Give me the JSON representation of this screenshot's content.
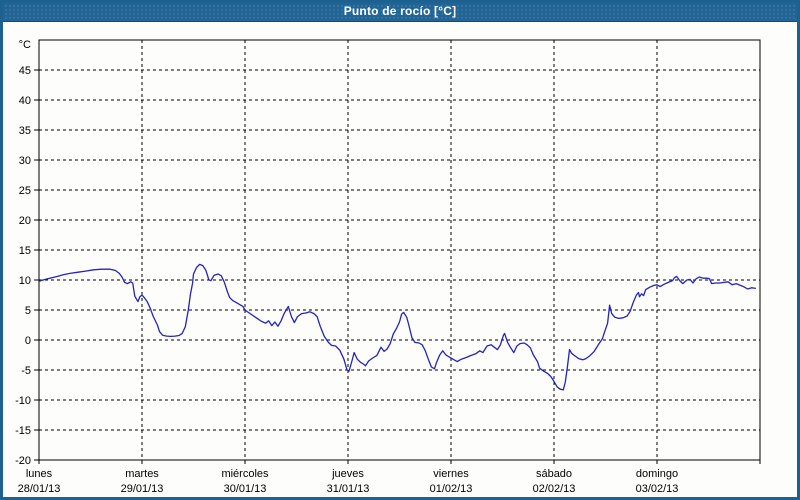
{
  "window": {
    "title": "Punto de rocío [°C]"
  },
  "colors": {
    "titlebar_bg": "#216495",
    "titlebar_text": "#ffffff",
    "window_border": "#1d6190",
    "chart_bg": "#fdfdfb",
    "plot_border": "#000000",
    "grid": "#000000",
    "line": "#2323bd",
    "label": "#000000"
  },
  "chart_data": {
    "type": "line",
    "title": "Punto de rocío [°C]",
    "ylabel": "°C",
    "y_unit": "°C",
    "ylim": [
      -20,
      50
    ],
    "ytick_labels": [
      45,
      40,
      35,
      30,
      25,
      20,
      15,
      10,
      5,
      0,
      -5,
      -10,
      -15,
      -20
    ],
    "grid": "dashed",
    "legend_position": "none",
    "x_days": [
      {
        "name": "lunes",
        "date": "28/01/13"
      },
      {
        "name": "martes",
        "date": "29/01/13"
      },
      {
        "name": "miércoles",
        "date": "30/01/13"
      },
      {
        "name": "jueves",
        "date": "31/01/13"
      },
      {
        "name": "viernes",
        "date": "01/02/13"
      },
      {
        "name": "sábado",
        "date": "02/02/13"
      },
      {
        "name": "domingo",
        "date": "03/02/13"
      }
    ],
    "series": [
      {
        "name": "Punto de rocío",
        "units": "°C",
        "x_units": "days since 28/01/13 00:00",
        "points": [
          [
            0.0,
            9.8
          ],
          [
            0.06,
            10.1
          ],
          [
            0.13,
            10.4
          ],
          [
            0.18,
            10.6
          ],
          [
            0.24,
            10.9
          ],
          [
            0.3,
            11.1
          ],
          [
            0.38,
            11.3
          ],
          [
            0.46,
            11.5
          ],
          [
            0.53,
            11.7
          ],
          [
            0.61,
            11.8
          ],
          [
            0.69,
            11.8
          ],
          [
            0.74,
            11.6
          ],
          [
            0.78,
            11.1
          ],
          [
            0.81,
            10.4
          ],
          [
            0.83,
            9.6
          ],
          [
            0.86,
            9.4
          ],
          [
            0.89,
            9.7
          ],
          [
            0.91,
            9.5
          ],
          [
            0.93,
            7.3
          ],
          [
            0.96,
            6.4
          ],
          [
            0.98,
            7.2
          ],
          [
            1.0,
            7.5
          ],
          [
            1.02,
            7.1
          ],
          [
            1.05,
            6.4
          ],
          [
            1.08,
            5.3
          ],
          [
            1.11,
            3.9
          ],
          [
            1.15,
            2.5
          ],
          [
            1.17,
            1.4
          ],
          [
            1.2,
            0.8
          ],
          [
            1.24,
            0.65
          ],
          [
            1.28,
            0.6
          ],
          [
            1.32,
            0.65
          ],
          [
            1.36,
            0.75
          ],
          [
            1.39,
            1.1
          ],
          [
            1.42,
            2.2
          ],
          [
            1.45,
            5.0
          ],
          [
            1.47,
            7.6
          ],
          [
            1.49,
            9.4
          ],
          [
            1.5,
            11.0
          ],
          [
            1.53,
            12.1
          ],
          [
            1.56,
            12.6
          ],
          [
            1.59,
            12.4
          ],
          [
            1.62,
            11.6
          ],
          [
            1.65,
            10.0
          ],
          [
            1.67,
            9.9
          ],
          [
            1.7,
            10.8
          ],
          [
            1.74,
            11.0
          ],
          [
            1.77,
            10.7
          ],
          [
            1.8,
            9.6
          ],
          [
            1.83,
            8.0
          ],
          [
            1.85,
            7.1
          ],
          [
            1.88,
            6.6
          ],
          [
            1.93,
            6.1
          ],
          [
            1.98,
            5.6
          ],
          [
            2.0,
            5.0
          ],
          [
            2.05,
            4.4
          ],
          [
            2.11,
            3.7
          ],
          [
            2.16,
            3.1
          ],
          [
            2.2,
            2.8
          ],
          [
            2.23,
            3.2
          ],
          [
            2.26,
            2.4
          ],
          [
            2.29,
            3.0
          ],
          [
            2.32,
            2.3
          ],
          [
            2.35,
            3.2
          ],
          [
            2.38,
            4.4
          ],
          [
            2.42,
            5.6
          ],
          [
            2.45,
            3.9
          ],
          [
            2.48,
            2.9
          ],
          [
            2.51,
            3.9
          ],
          [
            2.55,
            4.4
          ],
          [
            2.59,
            4.5
          ],
          [
            2.63,
            4.7
          ],
          [
            2.67,
            4.4
          ],
          [
            2.7,
            3.9
          ],
          [
            2.73,
            2.3
          ],
          [
            2.77,
            0.6
          ],
          [
            2.81,
            -0.4
          ],
          [
            2.84,
            -0.9
          ],
          [
            2.88,
            -1.0
          ],
          [
            2.92,
            -1.7
          ],
          [
            2.96,
            -3.2
          ],
          [
            2.99,
            -5.0
          ],
          [
            3.01,
            -5.2
          ],
          [
            3.03,
            -4.0
          ],
          [
            3.06,
            -2.1
          ],
          [
            3.09,
            -3.2
          ],
          [
            3.12,
            -3.7
          ],
          [
            3.15,
            -4.0
          ],
          [
            3.17,
            -4.3
          ],
          [
            3.2,
            -3.5
          ],
          [
            3.24,
            -3.0
          ],
          [
            3.28,
            -2.6
          ],
          [
            3.32,
            -1.2
          ],
          [
            3.35,
            -1.9
          ],
          [
            3.38,
            -1.5
          ],
          [
            3.41,
            -0.6
          ],
          [
            3.44,
            1.0
          ],
          [
            3.47,
            1.9
          ],
          [
            3.5,
            3.0
          ],
          [
            3.52,
            4.3
          ],
          [
            3.54,
            4.6
          ],
          [
            3.57,
            3.8
          ],
          [
            3.59,
            2.5
          ],
          [
            3.62,
            0.4
          ],
          [
            3.65,
            -0.4
          ],
          [
            3.69,
            -0.5
          ],
          [
            3.72,
            -0.8
          ],
          [
            3.75,
            -1.8
          ],
          [
            3.78,
            -3.2
          ],
          [
            3.81,
            -4.5
          ],
          [
            3.84,
            -4.8
          ],
          [
            3.86,
            -3.7
          ],
          [
            3.89,
            -2.5
          ],
          [
            3.92,
            -1.8
          ],
          [
            3.95,
            -2.5
          ],
          [
            3.99,
            -2.9
          ],
          [
            4.03,
            -3.3
          ],
          [
            4.06,
            -3.6
          ],
          [
            4.1,
            -3.2
          ],
          [
            4.15,
            -2.9
          ],
          [
            4.19,
            -2.6
          ],
          [
            4.24,
            -2.3
          ],
          [
            4.28,
            -1.8
          ],
          [
            4.31,
            -2.1
          ],
          [
            4.35,
            -1.0
          ],
          [
            4.39,
            -0.8
          ],
          [
            4.42,
            -1.2
          ],
          [
            4.45,
            -1.6
          ],
          [
            4.48,
            -0.8
          ],
          [
            4.51,
            0.8
          ],
          [
            4.52,
            1.1
          ],
          [
            4.55,
            -0.4
          ],
          [
            4.58,
            -1.3
          ],
          [
            4.61,
            -2.1
          ],
          [
            4.64,
            -1.0
          ],
          [
            4.67,
            -0.6
          ],
          [
            4.71,
            -0.5
          ],
          [
            4.74,
            -0.8
          ],
          [
            4.77,
            -1.3
          ],
          [
            4.8,
            -2.5
          ],
          [
            4.84,
            -3.6
          ],
          [
            4.86,
            -4.7
          ],
          [
            4.9,
            -5.2
          ],
          [
            4.94,
            -5.6
          ],
          [
            4.97,
            -6.1
          ],
          [
            5.0,
            -6.9
          ],
          [
            5.03,
            -7.8
          ],
          [
            5.06,
            -8.2
          ],
          [
            5.09,
            -8.3
          ],
          [
            5.11,
            -7.0
          ],
          [
            5.13,
            -4.5
          ],
          [
            5.15,
            -1.6
          ],
          [
            5.17,
            -2.2
          ],
          [
            5.2,
            -2.6
          ],
          [
            5.24,
            -3.1
          ],
          [
            5.28,
            -3.3
          ],
          [
            5.31,
            -3.1
          ],
          [
            5.35,
            -2.6
          ],
          [
            5.39,
            -1.9
          ],
          [
            5.43,
            -0.8
          ],
          [
            5.47,
            0.2
          ],
          [
            5.49,
            1.3
          ],
          [
            5.52,
            2.8
          ],
          [
            5.54,
            5.8
          ],
          [
            5.56,
            4.4
          ],
          [
            5.59,
            3.8
          ],
          [
            5.63,
            3.6
          ],
          [
            5.67,
            3.7
          ],
          [
            5.71,
            4.0
          ],
          [
            5.74,
            4.8
          ],
          [
            5.77,
            6.3
          ],
          [
            5.8,
            7.5
          ],
          [
            5.82,
            7.9
          ],
          [
            5.83,
            7.2
          ],
          [
            5.85,
            7.7
          ],
          [
            5.87,
            7.4
          ],
          [
            5.89,
            8.4
          ],
          [
            5.93,
            8.8
          ],
          [
            5.97,
            9.1
          ],
          [
            6.0,
            9.2
          ],
          [
            6.03,
            8.9
          ],
          [
            6.07,
            9.3
          ],
          [
            6.11,
            9.6
          ],
          [
            6.15,
            9.9
          ],
          [
            6.17,
            10.4
          ],
          [
            6.19,
            10.6
          ],
          [
            6.22,
            9.9
          ],
          [
            6.25,
            9.4
          ],
          [
            6.29,
            10.0
          ],
          [
            6.32,
            10.1
          ],
          [
            6.35,
            9.5
          ],
          [
            6.38,
            10.2
          ],
          [
            6.41,
            10.5
          ],
          [
            6.45,
            10.3
          ],
          [
            6.49,
            10.3
          ],
          [
            6.51,
            10.2
          ],
          [
            6.53,
            9.4
          ],
          [
            6.57,
            9.5
          ],
          [
            6.61,
            9.5
          ],
          [
            6.65,
            9.6
          ],
          [
            6.69,
            9.7
          ],
          [
            6.73,
            9.2
          ],
          [
            6.77,
            9.4
          ],
          [
            6.81,
            9.1
          ],
          [
            6.84,
            8.9
          ],
          [
            6.88,
            8.5
          ],
          [
            6.92,
            8.7
          ],
          [
            6.96,
            8.6
          ]
        ]
      }
    ]
  }
}
